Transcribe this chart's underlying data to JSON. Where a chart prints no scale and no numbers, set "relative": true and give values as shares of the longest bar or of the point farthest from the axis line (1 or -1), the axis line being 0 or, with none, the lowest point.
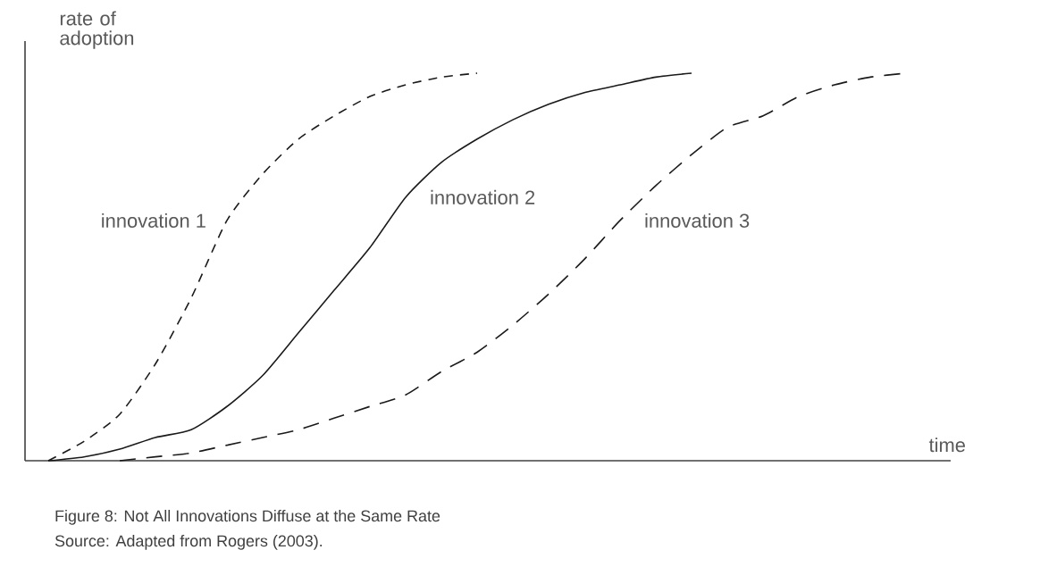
{
  "chart_data": {
    "type": "line",
    "relative": true,
    "xlabel": "time",
    "ylabel": "rate of adoption",
    "categories": [
      null,
      null,
      null,
      null,
      null,
      null,
      null,
      null,
      null,
      null,
      null,
      null,
      null,
      null,
      null,
      null,
      null,
      null,
      null,
      null,
      null,
      null,
      null,
      null,
      null
    ],
    "series": [
      {
        "name": "innovation 1",
        "color": "#1a1a1a",
        "line_style": "dashed",
        "values": [
          0,
          0.05,
          0.12,
          0.25,
          0.42,
          0.62,
          0.74,
          0.83,
          0.89,
          0.94,
          0.97,
          0.99,
          1.0,
          null,
          null,
          null,
          null,
          null,
          null,
          null,
          null,
          null,
          null,
          null,
          null
        ]
      },
      {
        "name": "innovation 2",
        "color": "#1a1a1a",
        "line_style": "solid",
        "values": [
          0,
          0.01,
          0.03,
          0.06,
          0.08,
          0.14,
          0.22,
          0.33,
          0.44,
          0.55,
          0.68,
          0.77,
          0.83,
          0.88,
          0.92,
          0.95,
          0.97,
          0.99,
          1.0,
          null,
          null,
          null,
          null,
          null,
          null
        ]
      },
      {
        "name": "innovation 3",
        "color": "#1a1a1a",
        "line_style": "dashed",
        "values": [
          null,
          null,
          0,
          0.01,
          0.02,
          0.04,
          0.06,
          0.08,
          0.11,
          0.14,
          0.17,
          0.23,
          0.28,
          0.35,
          0.43,
          0.52,
          0.62,
          0.71,
          0.79,
          0.86,
          0.89,
          0.94,
          0.97,
          0.99,
          1.0
        ]
      }
    ],
    "annotations": [
      "Figure 8: Not All Innovations Diffuse at the Same Rate",
      "Source: Adapted from Rogers (2003)."
    ]
  }
}
